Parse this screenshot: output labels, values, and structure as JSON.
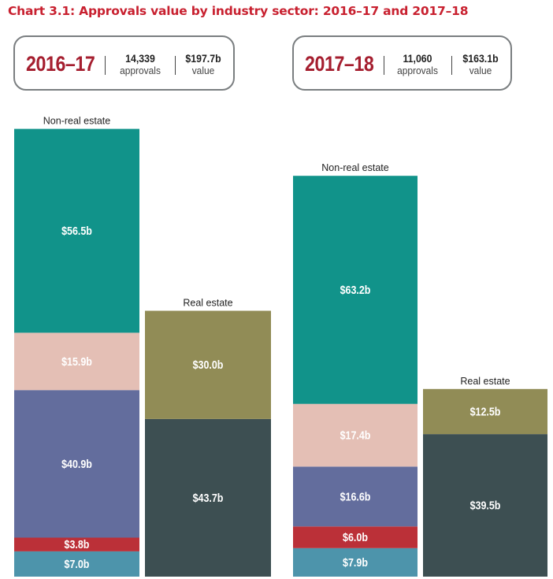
{
  "title": "Chart 3.1: Approvals value by industry sector: 2016–17 and 2017–18",
  "summaries": [
    {
      "year": "2016–17",
      "approvals_num": "14,339",
      "approvals_label": "approvals",
      "value_num": "$197.7b",
      "value_label": "value"
    },
    {
      "year": "2017–18",
      "approvals_num": "11,060",
      "approvals_label": "approvals",
      "value_num": "$163.1b",
      "value_label": "value"
    }
  ],
  "colors": {
    "teal": "#11938a",
    "pink": "#e4bfb5",
    "purple": "#636d9d",
    "red": "#bb3038",
    "blue": "#4d94ab",
    "olive": "#918c56",
    "slate": "#3d4f52",
    "title": "#c8202f"
  },
  "chart_data": {
    "type": "bar",
    "stacked": true,
    "unit": "$b",
    "title": "Chart 3.1: Approvals value by industry sector: 2016–17 and 2017–18",
    "columns": [
      {
        "period": "2016–17",
        "category": "Non-real estate",
        "segments": [
          {
            "value": 7.0,
            "label": "$7.0b",
            "color": "#4d94ab"
          },
          {
            "value": 3.8,
            "label": "$3.8b",
            "color": "#bb3038"
          },
          {
            "value": 40.9,
            "label": "$40.9b",
            "color": "#636d9d"
          },
          {
            "value": 15.9,
            "label": "$15.9b",
            "color": "#e4bfb5"
          },
          {
            "value": 56.5,
            "label": "$56.5b",
            "color": "#11938a"
          }
        ]
      },
      {
        "period": "2016–17",
        "category": "Real estate",
        "segments": [
          {
            "value": 43.7,
            "label": "$43.7b",
            "color": "#3d4f52"
          },
          {
            "value": 30.0,
            "label": "$30.0b",
            "color": "#918c56"
          }
        ]
      },
      {
        "period": "2017–18",
        "category": "Non-real estate",
        "segments": [
          {
            "value": 7.9,
            "label": "$7.9b",
            "color": "#4d94ab"
          },
          {
            "value": 6.0,
            "label": "$6.0b",
            "color": "#bb3038"
          },
          {
            "value": 16.6,
            "label": "$16.6b",
            "color": "#636d9d"
          },
          {
            "value": 17.4,
            "label": "$17.4b",
            "color": "#e4bfb5"
          },
          {
            "value": 63.2,
            "label": "$63.2b",
            "color": "#11938a"
          }
        ]
      },
      {
        "period": "2017–18",
        "category": "Real estate",
        "segments": [
          {
            "value": 39.5,
            "label": "$39.5b",
            "color": "#3d4f52"
          },
          {
            "value": 12.5,
            "label": "$12.5b",
            "color": "#918c56"
          }
        ]
      }
    ]
  }
}
